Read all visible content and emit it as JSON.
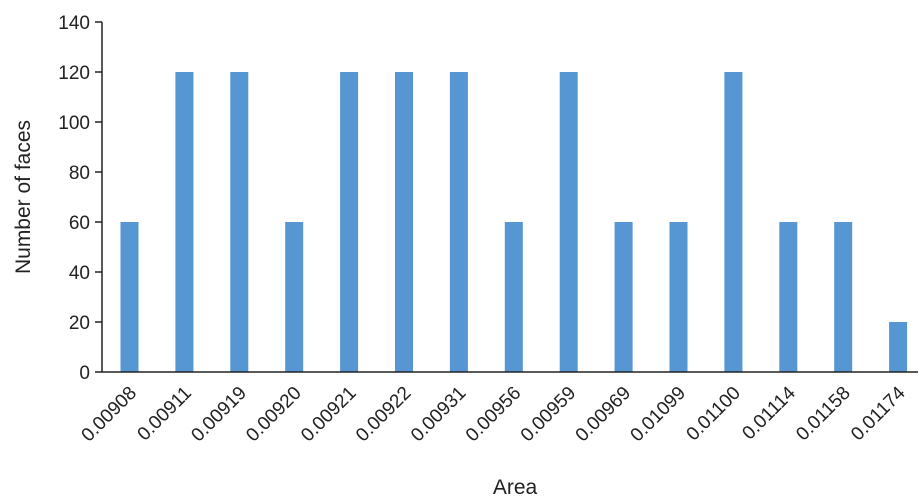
{
  "chart_data": {
    "type": "bar",
    "title": "",
    "xlabel": "Area",
    "ylabel": "Number of faces",
    "ylim": [
      0,
      140
    ],
    "yticks": [
      0,
      20,
      40,
      60,
      80,
      100,
      120,
      140
    ],
    "categories": [
      "0.00908",
      "0.00911",
      "0.00919",
      "0.00920",
      "0.00921",
      "0.00922",
      "0.00931",
      "0.00956",
      "0.00959",
      "0.00969",
      "0.01099",
      "0.01100",
      "0.01114",
      "0.01158",
      "0.01174"
    ],
    "values": [
      60,
      120,
      120,
      60,
      120,
      120,
      120,
      60,
      120,
      60,
      60,
      120,
      60,
      60,
      20
    ],
    "grid": false,
    "legend": "none",
    "bar_color": "#5596D3",
    "axis_color": "#222222"
  }
}
